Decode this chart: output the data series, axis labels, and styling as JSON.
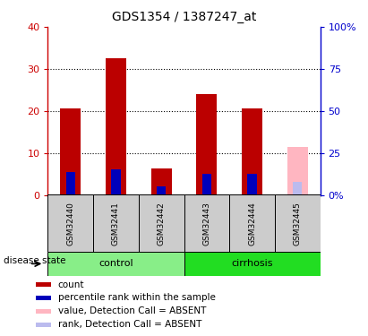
{
  "title": "GDS1354 / 1387247_at",
  "samples": [
    "GSM32440",
    "GSM32441",
    "GSM32442",
    "GSM32443",
    "GSM32444",
    "GSM32445"
  ],
  "red_values": [
    20.5,
    32.5,
    6.3,
    24.0,
    20.5,
    0
  ],
  "blue_values": [
    13.5,
    15.0,
    5.0,
    12.5,
    12.5,
    0
  ],
  "pink_value": 11.5,
  "lightblue_value": 7.5,
  "absent_sample_idx": 5,
  "ylim_left": [
    0,
    40
  ],
  "ylim_right": [
    0,
    100
  ],
  "left_ticks": [
    0,
    10,
    20,
    30,
    40
  ],
  "right_ticks": [
    0,
    25,
    50,
    75,
    100
  ],
  "left_tick_labels": [
    "0",
    "10",
    "20",
    "30",
    "40"
  ],
  "right_tick_labels": [
    "0%",
    "25",
    "50",
    "75",
    "100%"
  ],
  "red_color": "#BB0000",
  "blue_color": "#0000BB",
  "pink_color": "#FFB6C1",
  "lightblue_color": "#BBBBEE",
  "bg_color": "#FFFFFF",
  "sample_area_color": "#CCCCCC",
  "control_color": "#88EE88",
  "cirrhosis_color": "#22DD22",
  "control_samples": [
    0,
    1,
    2
  ],
  "cirrhosis_samples": [
    3,
    4,
    5
  ],
  "legend_items": [
    {
      "label": "count",
      "color": "#BB0000"
    },
    {
      "label": "percentile rank within the sample",
      "color": "#0000BB"
    },
    {
      "label": "value, Detection Call = ABSENT",
      "color": "#FFB6C1"
    },
    {
      "label": "rank, Detection Call = ABSENT",
      "color": "#BBBBEE"
    }
  ]
}
